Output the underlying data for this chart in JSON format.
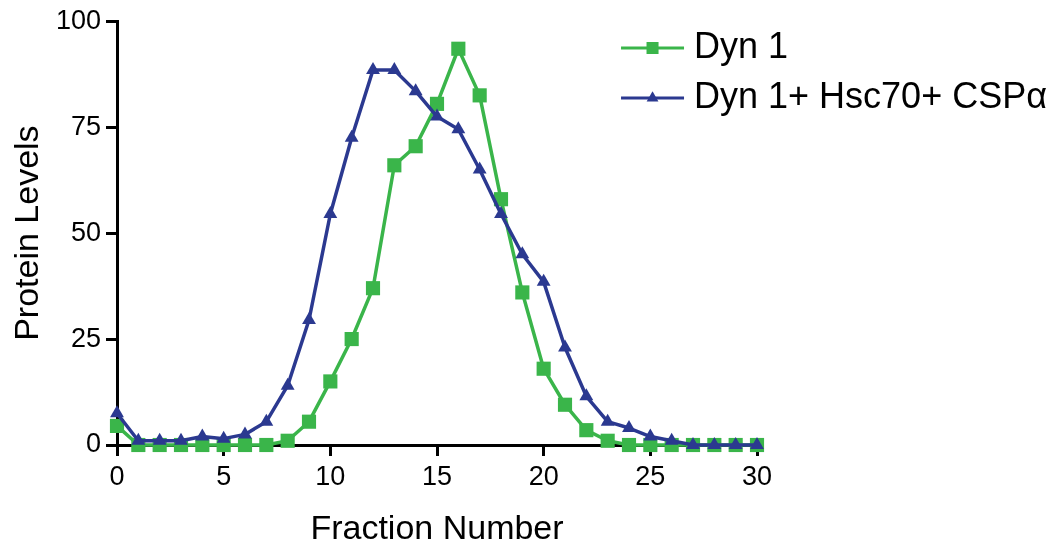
{
  "chart_data": {
    "type": "line",
    "xlabel": "Fraction Number",
    "ylabel": "Protein Levels",
    "x": [
      0,
      1,
      2,
      3,
      4,
      5,
      6,
      7,
      8,
      9,
      10,
      11,
      12,
      13,
      14,
      15,
      16,
      17,
      18,
      19,
      20,
      21,
      22,
      23,
      24,
      25,
      26,
      27,
      28,
      29,
      30
    ],
    "series": [
      {
        "name": "Dyn 1",
        "color": "#3ab54a",
        "marker": "square",
        "values": [
          4.5,
          0,
          0,
          0,
          0,
          0,
          0,
          0,
          1,
          5.5,
          15,
          25,
          37,
          66,
          70.5,
          80.5,
          93.5,
          82.5,
          58,
          36,
          18,
          9.5,
          3.5,
          1,
          0,
          0,
          0,
          0,
          0,
          0,
          0
        ]
      },
      {
        "name": "Dyn 1+ Hsc70+ CSPα",
        "color": "#2b3990",
        "marker": "triangle",
        "values": [
          7.5,
          1,
          1,
          1,
          2,
          1.5,
          2.5,
          5.5,
          14,
          29.5,
          54.5,
          72.5,
          88.5,
          88.5,
          83.5,
          77.5,
          74.5,
          65,
          54.5,
          45,
          38.5,
          23,
          11.5,
          5.5,
          4,
          2,
          1,
          0,
          0,
          0,
          0
        ]
      }
    ],
    "xlim": [
      0,
      30
    ],
    "xticks": [
      0,
      5,
      10,
      15,
      20,
      25,
      30
    ],
    "ylim": [
      0,
      100
    ],
    "yticks": [
      0,
      25,
      50,
      75,
      100
    ],
    "legend": "top right",
    "line_style": "solid"
  }
}
